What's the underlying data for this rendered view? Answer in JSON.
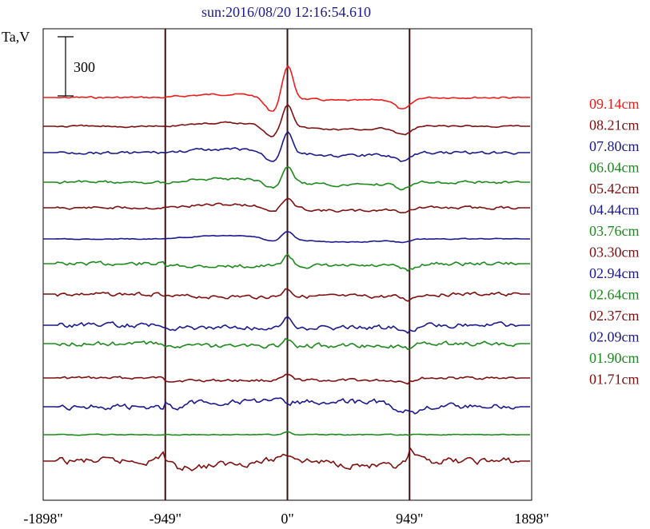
{
  "chart_data": {
    "type": "line",
    "title": "sun:2016/08/20 12:16:54.610",
    "ylabel": "Ta,V",
    "scale_bar_label": "300",
    "scale_bar_value": 300,
    "xlim": [
      -1898,
      1898
    ],
    "x_ticks": [
      {
        "value": -1898,
        "label": "-1898\""
      },
      {
        "value": -949,
        "label": "-949\""
      },
      {
        "value": 0,
        "label": "0\""
      },
      {
        "value": 949,
        "label": "949\""
      },
      {
        "value": 1898,
        "label": "1898\""
      }
    ],
    "vertical_lines": [
      -949,
      0,
      949
    ],
    "series": [
      {
        "name": "09.14cm",
        "color": "#ee1c1c",
        "baseline": 122,
        "profile": "quiet",
        "peak": 42,
        "rough": 2
      },
      {
        "name": "08.21cm",
        "color": "#7f0f0f",
        "baseline": 158,
        "profile": "quiet",
        "peak": 30,
        "rough": 2
      },
      {
        "name": "07.80cm",
        "color": "#1a1a8c",
        "baseline": 191,
        "profile": "quiet",
        "peak": 28,
        "rough": 3
      },
      {
        "name": "06.04cm",
        "color": "#1e8a1e",
        "baseline": 228,
        "profile": "quiet",
        "peak": 22,
        "rough": 3
      },
      {
        "name": "05.42cm",
        "color": "#7f0f0f",
        "baseline": 260,
        "profile": "quiet",
        "peak": 12,
        "rough": 3
      },
      {
        "name": "04.44cm",
        "color": "#1a1a8c",
        "baseline": 299,
        "profile": "quiet",
        "peak": 10,
        "rough": 1
      },
      {
        "name": "03.76cm",
        "color": "#1e8a1e",
        "baseline": 330,
        "profile": "noisy",
        "peak": 14,
        "rough": 4
      },
      {
        "name": "03.30cm",
        "color": "#7f0f0f",
        "baseline": 368,
        "profile": "noisy",
        "peak": 10,
        "rough": 4
      },
      {
        "name": "02.94cm",
        "color": "#1a1a8c",
        "baseline": 407,
        "profile": "noisy",
        "peak": 12,
        "rough": 5
      },
      {
        "name": "02.64cm",
        "color": "#1e8a1e",
        "baseline": 430,
        "profile": "noisy",
        "peak": 8,
        "rough": 5
      },
      {
        "name": "02.37cm",
        "color": "#7f0f0f",
        "baseline": 473,
        "profile": "noisy",
        "peak": 6,
        "rough": 3
      },
      {
        "name": "02.09cm",
        "color": "#1a1a8c",
        "baseline": 509,
        "profile": "dips",
        "peak": 10,
        "rough": 6
      },
      {
        "name": "01.90cm",
        "color": "#1e8a1e",
        "baseline": 544,
        "profile": "flat",
        "peak": 4,
        "rough": 1
      },
      {
        "name": "01.71cm",
        "color": "#7f0f0f",
        "baseline": 577,
        "profile": "hump",
        "peak": 12,
        "rough": 7
      }
    ]
  }
}
